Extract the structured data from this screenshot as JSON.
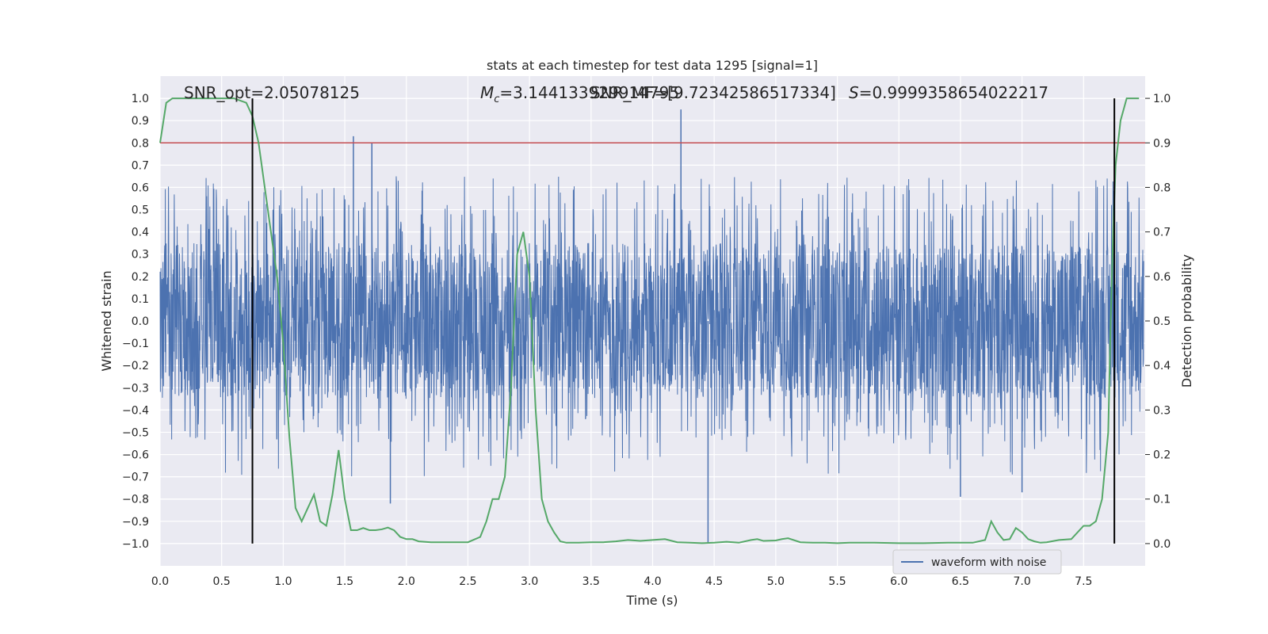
{
  "chart_data": {
    "type": "line",
    "title": "stats at each timestep for test data 1295 [signal=1]",
    "xlabel": "Time (s)",
    "ylabel": "Whitened strain",
    "y2label": "Detection probability",
    "xlim": [
      0.0,
      8.0
    ],
    "ylim": [
      -1.1,
      1.1
    ],
    "y2lim": [
      -0.05,
      1.05
    ],
    "xticks": [
      "0.0",
      "0.5",
      "1.0",
      "1.5",
      "2.0",
      "2.5",
      "3.0",
      "3.5",
      "4.0",
      "4.5",
      "5.0",
      "5.5",
      "6.0",
      "6.5",
      "7.0",
      "7.5"
    ],
    "yticks": [
      "1.0",
      "0.9",
      "0.8",
      "0.7",
      "0.6",
      "0.5",
      "0.4",
      "0.3",
      "0.2",
      "0.1",
      "0.0",
      "−0.1",
      "−0.2",
      "−0.3",
      "−0.4",
      "−0.5",
      "−0.6",
      "−0.7",
      "−0.8",
      "−0.9",
      "−1.0"
    ],
    "y2ticks": [
      "1.0",
      "0.9",
      "0.8",
      "0.7",
      "0.6",
      "0.5",
      "0.4",
      "0.3",
      "0.2",
      "0.1",
      "0.0"
    ],
    "grid": true,
    "legend_placement": "lower-right",
    "annotations": {
      "snr_opt": "SNR_opt=2.05078125",
      "mc": "=3.144133929914795",
      "snr_mf": "SNR_MF=[9.72342586517334]",
      "s": "=0.9999358654022217"
    },
    "vlines_x": [
      0.75,
      7.75
    ],
    "threshold_y2": 0.9,
    "series": [
      {
        "name": "waveform with noise",
        "color": "#4c72b0",
        "envelope_core": [
          -0.35,
          0.35
        ],
        "notable_peaks": [
          {
            "x": 1.57,
            "y": 0.83
          },
          {
            "x": 1.72,
            "y": 0.8
          },
          {
            "x": 4.23,
            "y": 0.95
          },
          {
            "x": 4.45,
            "y": -1.0
          },
          {
            "x": 1.87,
            "y": -0.82
          },
          {
            "x": 6.5,
            "y": -0.79
          },
          {
            "x": 7.0,
            "y": -0.77
          }
        ]
      },
      {
        "name": "",
        "color": "#55a868",
        "axis": "y2",
        "x": [
          0.0,
          0.05,
          0.1,
          0.2,
          0.3,
          0.4,
          0.5,
          0.6,
          0.7,
          0.75,
          0.8,
          0.85,
          0.9,
          0.95,
          1.0,
          1.05,
          1.1,
          1.15,
          1.2,
          1.25,
          1.3,
          1.35,
          1.4,
          1.45,
          1.5,
          1.55,
          1.6,
          1.65,
          1.7,
          1.75,
          1.8,
          1.85,
          1.9,
          1.95,
          2.0,
          2.05,
          2.1,
          2.2,
          2.3,
          2.4,
          2.5,
          2.6,
          2.65,
          2.7,
          2.75,
          2.8,
          2.85,
          2.9,
          2.95,
          3.0,
          3.05,
          3.1,
          3.15,
          3.2,
          3.25,
          3.3,
          3.35,
          3.4,
          3.5,
          3.6,
          3.7,
          3.8,
          3.9,
          4.0,
          4.1,
          4.2,
          4.3,
          4.4,
          4.5,
          4.6,
          4.7,
          4.8,
          4.85,
          4.9,
          5.0,
          5.05,
          5.1,
          5.2,
          5.3,
          5.4,
          5.5,
          5.6,
          5.8,
          6.0,
          6.2,
          6.4,
          6.6,
          6.7,
          6.75,
          6.8,
          6.85,
          6.9,
          6.95,
          7.0,
          7.05,
          7.1,
          7.15,
          7.2,
          7.3,
          7.4,
          7.5,
          7.55,
          7.6,
          7.65,
          7.7,
          7.72,
          7.74,
          7.76,
          7.8,
          7.85,
          7.9,
          7.95
        ],
        "values": [
          0.9,
          0.99,
          1.0,
          1.0,
          1.0,
          1.0,
          1.0,
          1.0,
          0.99,
          0.96,
          0.9,
          0.8,
          0.7,
          0.6,
          0.45,
          0.24,
          0.08,
          0.05,
          0.08,
          0.11,
          0.05,
          0.04,
          0.11,
          0.21,
          0.1,
          0.03,
          0.03,
          0.035,
          0.03,
          0.03,
          0.032,
          0.036,
          0.03,
          0.015,
          0.01,
          0.01,
          0.005,
          0.003,
          0.003,
          0.003,
          0.003,
          0.015,
          0.05,
          0.1,
          0.1,
          0.15,
          0.35,
          0.65,
          0.7,
          0.6,
          0.3,
          0.1,
          0.05,
          0.025,
          0.005,
          0.002,
          0.002,
          0.002,
          0.003,
          0.003,
          0.005,
          0.008,
          0.006,
          0.008,
          0.01,
          0.003,
          0.002,
          0.001,
          0.002,
          0.004,
          0.002,
          0.008,
          0.01,
          0.006,
          0.007,
          0.01,
          0.012,
          0.003,
          0.002,
          0.002,
          0.001,
          0.002,
          0.002,
          0.001,
          0.001,
          0.002,
          0.002,
          0.008,
          0.05,
          0.025,
          0.008,
          0.01,
          0.035,
          0.025,
          0.01,
          0.005,
          0.002,
          0.003,
          0.008,
          0.01,
          0.04,
          0.04,
          0.05,
          0.1,
          0.25,
          0.5,
          0.7,
          0.85,
          0.95,
          1.0,
          1.0,
          1.0
        ]
      }
    ]
  }
}
